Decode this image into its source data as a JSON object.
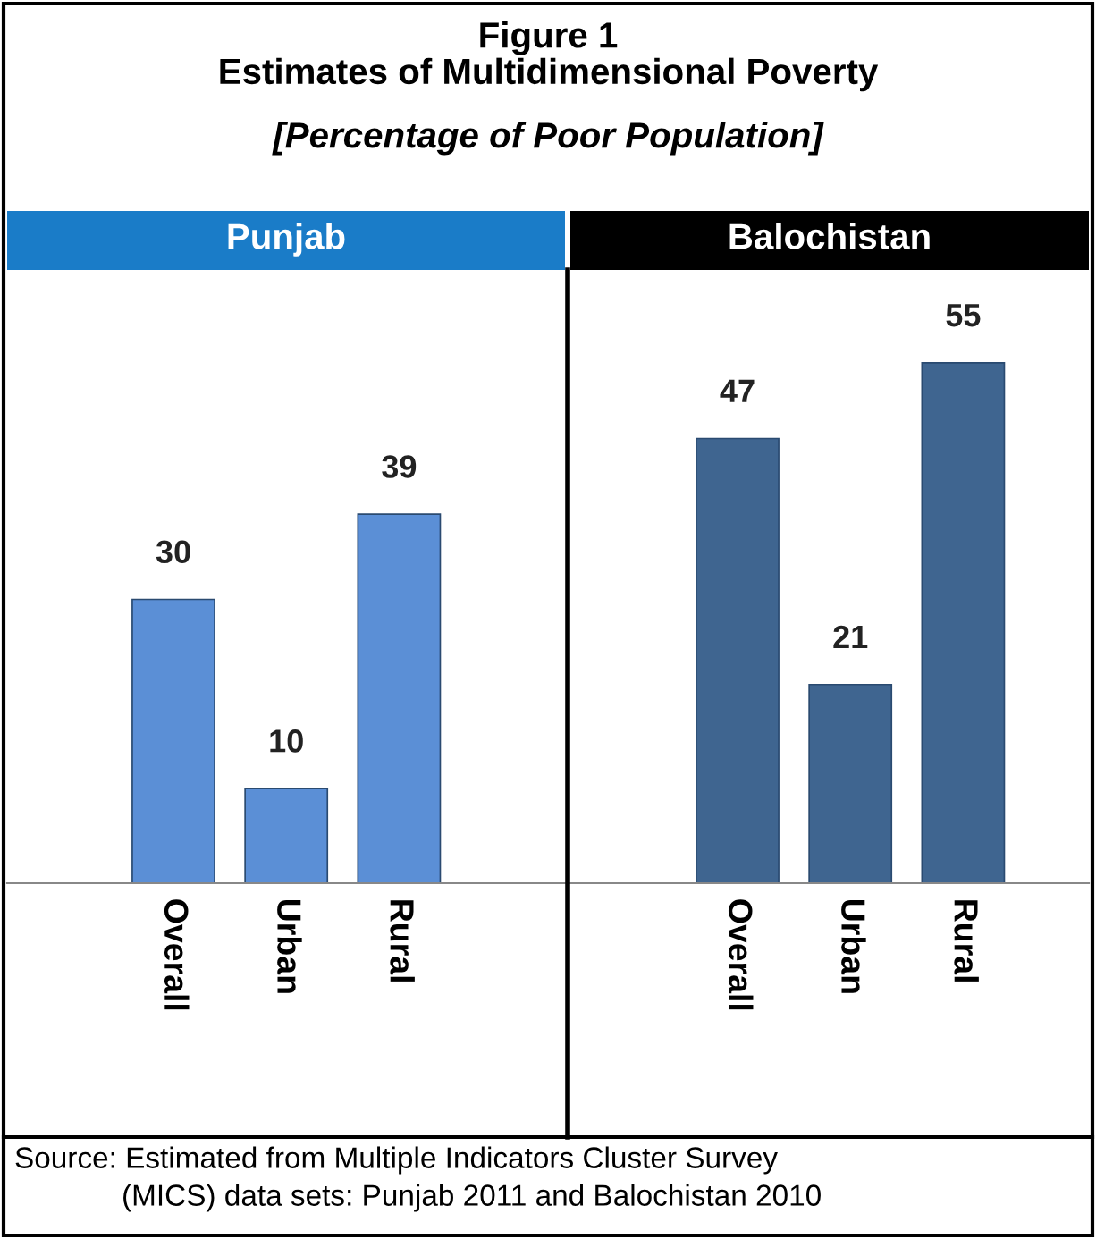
{
  "chart_data": {
    "type": "bar",
    "title": "Figure 1\nEstimates of Multidimensional Poverty",
    "subtitle": "[Percentage of Poor Population]",
    "categories": [
      "Overall",
      "Urban",
      "Rural",
      null,
      null,
      "Overall",
      "Urban",
      "Rural"
    ],
    "values": [
      30,
      10,
      39,
      null,
      null,
      47,
      21,
      55
    ],
    "colors": [
      "#5b8fd6",
      "#5b8fd6",
      "#5b8fd6",
      null,
      null,
      "#3f6590",
      "#3f6590",
      "#3f6590"
    ],
    "data_labels": true,
    "ylim": [
      0,
      65
    ],
    "tick_labels": "x",
    "grid": false,
    "legend": false,
    "annotations": [
      "Punjab",
      "Balochistan",
      "Source: Estimated from Multiple Indicators Cluster Survey\n(MICS) data sets: Punjab 2011 and Balochistan 2010"
    ]
  }
}
